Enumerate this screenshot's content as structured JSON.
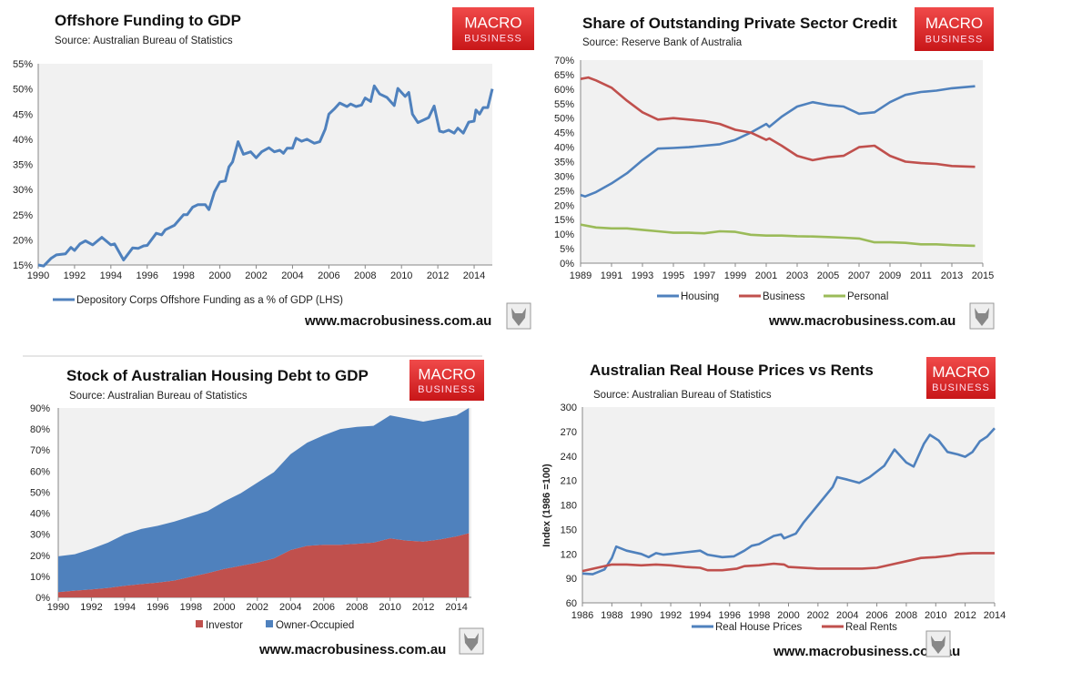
{
  "site": "www.macrobusiness.com.au",
  "logo_text": [
    "MACRO",
    "BUSINESS"
  ],
  "colors": {
    "blue": "#4f81bd",
    "red": "#c0504d",
    "green": "#9bbb59",
    "plot_bg": "#f1f1f1",
    "logo_red": "#e0272a"
  },
  "chart_data": [
    {
      "type": "line",
      "title": "Offshore Funding to GDP",
      "source": "Source:  Australian Bureau of Statistics",
      "xlim": [
        1990,
        2015
      ],
      "ylim": [
        15,
        55
      ],
      "xticks": [
        "1990",
        "1992",
        "1994",
        "1996",
        "1998",
        "2000",
        "2002",
        "2004",
        "2006",
        "2008",
        "2010",
        "2012",
        "2014"
      ],
      "yticks": [
        "15%",
        "20%",
        "25%",
        "30%",
        "35%",
        "40%",
        "45%",
        "50%",
        "55%"
      ],
      "series": [
        {
          "name": "Depository Corps Offshore Funding as a % of GDP (LHS)",
          "color": "#4f81bd",
          "x": [
            1990,
            1990.3,
            1990.7,
            1991,
            1991.5,
            1991.8,
            1992,
            1992.3,
            1992.6,
            1993,
            1993.5,
            1994,
            1994.2,
            1994.7,
            1995.2,
            1995.5,
            1995.8,
            1996,
            1996.5,
            1996.8,
            1997,
            1997.5,
            1998,
            1998.2,
            1998.5,
            1998.8,
            1999.2,
            1999.4,
            1999.7,
            2000,
            2000.3,
            2000.5,
            2000.7,
            2001,
            2001.3,
            2001.7,
            2002,
            2002.3,
            2002.7,
            2003,
            2003.3,
            2003.5,
            2003.7,
            2004,
            2004.2,
            2004.5,
            2004.8,
            2005.2,
            2005.5,
            2005.8,
            2006,
            2006.3,
            2006.6,
            2007,
            2007.2,
            2007.5,
            2007.8,
            2008,
            2008.3,
            2008.5,
            2008.8,
            2009.2,
            2009.6,
            2009.8,
            2010.2,
            2010.4,
            2010.6,
            2010.9,
            2011.2,
            2011.5,
            2011.8,
            2012.1,
            2012.3,
            2012.6,
            2012.9,
            2013.1,
            2013.4,
            2013.7,
            2014,
            2014.1,
            2014.3,
            2014.5,
            2014.75,
            2015
          ],
          "y": [
            15,
            14.8,
            16.3,
            17,
            17.2,
            18.5,
            17.9,
            19.2,
            19.8,
            19,
            20.5,
            19,
            19.2,
            16,
            18.4,
            18.3,
            18.8,
            18.9,
            21.3,
            21,
            22,
            22.9,
            25,
            25,
            26.5,
            27,
            27,
            26,
            29.5,
            31.5,
            31.7,
            34.5,
            35.5,
            39.5,
            37,
            37.5,
            36.3,
            37.5,
            38.3,
            37.5,
            37.8,
            37.2,
            38.2,
            38.2,
            40.2,
            39.6,
            40,
            39.2,
            39.5,
            42,
            45,
            46,
            47.2,
            46.5,
            47,
            46.5,
            46.8,
            48.2,
            47.5,
            50.6,
            49,
            48.3,
            46.7,
            50.1,
            48.5,
            49.3,
            45,
            43.3,
            43.8,
            44.3,
            46.6,
            41.6,
            41.4,
            41.8,
            41.2,
            42.2,
            41.2,
            43.4,
            43.6,
            45.8,
            45,
            46.3,
            46.3,
            50
          ]
        }
      ],
      "legend": "bottom-left"
    },
    {
      "type": "line",
      "title": "Share of Outstanding Private Sector Credit",
      "source": "Source: Reserve Bank of Australia",
      "xlim": [
        1989,
        2015
      ],
      "ylim": [
        0,
        70
      ],
      "xticks": [
        "1989",
        "1991",
        "1993",
        "1995",
        "1997",
        "1999",
        "2001",
        "2003",
        "2005",
        "2007",
        "2009",
        "2011",
        "2013",
        "2015"
      ],
      "yticks": [
        "0%",
        "5%",
        "10%",
        "15%",
        "20%",
        "25%",
        "30%",
        "35%",
        "40%",
        "45%",
        "50%",
        "55%",
        "60%",
        "65%",
        "70%"
      ],
      "series": [
        {
          "name": "Housing",
          "color": "#4f81bd",
          "x": [
            1989,
            1989.3,
            1990,
            1991,
            1992,
            1993,
            1994,
            1995,
            1996,
            1997,
            1998,
            1999,
            2000,
            2001,
            2001.2,
            2002,
            2003,
            2004,
            2005,
            2006,
            2007,
            2008,
            2009,
            2010,
            2011,
            2012,
            2013,
            2014.5
          ],
          "y": [
            23.5,
            23,
            24.5,
            27.5,
            31,
            35.5,
            39.5,
            39.7,
            40,
            40.5,
            41,
            42.5,
            45,
            48,
            47,
            50.5,
            54,
            55.5,
            54.5,
            54,
            51.5,
            52,
            55.5,
            58,
            59,
            59.5,
            60.3,
            61
          ]
        },
        {
          "name": "Business",
          "color": "#c0504d",
          "x": [
            1989,
            1989.5,
            1990,
            1991,
            1992,
            1993,
            1994,
            1995,
            1996,
            1997,
            1998,
            1999,
            2000,
            2001,
            2001.2,
            2002,
            2003,
            2004,
            2005,
            2006,
            2007,
            2008,
            2009,
            2010,
            2011,
            2012,
            2013,
            2014.5
          ],
          "y": [
            63.5,
            64,
            63,
            60.5,
            56,
            52,
            49.5,
            50,
            49.5,
            49,
            48,
            46,
            45,
            42.5,
            43,
            40.5,
            37,
            35.5,
            36.5,
            37,
            40,
            40.5,
            37,
            35,
            34.5,
            34.2,
            33.5,
            33.2
          ]
        },
        {
          "name": "Personal",
          "color": "#9bbb59",
          "x": [
            1989,
            1990,
            1991,
            1992,
            1993,
            1994,
            1995,
            1996,
            1997,
            1998,
            1999,
            2000,
            2001,
            2002,
            2003,
            2004,
            2005,
            2006,
            2007,
            2008,
            2009,
            2010,
            2011,
            2012,
            2013,
            2014.5
          ],
          "y": [
            13.3,
            12.3,
            12,
            12,
            11.5,
            11,
            10.5,
            10.5,
            10.3,
            11,
            10.8,
            9.8,
            9.5,
            9.5,
            9.3,
            9.2,
            9,
            8.8,
            8.5,
            7.2,
            7.2,
            7,
            6.5,
            6.5,
            6.2,
            6
          ]
        }
      ],
      "legend": "bottom"
    },
    {
      "type": "area",
      "stacked": true,
      "title": "Stock of Australian Housing Debt to GDP",
      "source": "Source: Australian Bureau of Statistics",
      "xlim": [
        1990,
        2014.9
      ],
      "ylim": [
        0,
        90
      ],
      "xticks": [
        "1990",
        "1992",
        "1994",
        "1996",
        "1998",
        "2000",
        "2002",
        "2004",
        "2006",
        "2008",
        "2010",
        "2012",
        "2014"
      ],
      "yticks": [
        "0%",
        "10%",
        "20%",
        "30%",
        "40%",
        "50%",
        "60%",
        "70%",
        "80%",
        "90%"
      ],
      "x": [
        1990,
        1991,
        1992,
        1993,
        1994,
        1995,
        1996,
        1997,
        1998,
        1999,
        2000,
        2001,
        2002,
        2003,
        2004,
        2005,
        2006,
        2007,
        2008,
        2009,
        2010,
        2011,
        2012,
        2013,
        2014,
        2014.75
      ],
      "series": [
        {
          "name": "Investor",
          "color": "#c0504d",
          "values": [
            2.5,
            3.2,
            3.8,
            4.5,
            5.5,
            6.3,
            7,
            8,
            9.8,
            11.5,
            13.5,
            15,
            16.5,
            18.5,
            22.5,
            24.5,
            25,
            25,
            25.5,
            26,
            28,
            27,
            26.5,
            27.5,
            29,
            30.5
          ]
        },
        {
          "name": "Owner-Occupied",
          "color": "#4f81bd",
          "values": [
            17,
            17.3,
            19.2,
            21.5,
            24.5,
            26.2,
            27,
            28,
            28.7,
            29.5,
            32,
            34.5,
            38,
            41,
            45.5,
            49,
            52,
            55,
            55.5,
            55.5,
            58.5,
            58,
            57,
            57.5,
            57.5,
            59.5
          ]
        }
      ],
      "legend": "bottom"
    },
    {
      "type": "line",
      "title": "Australian Real House Prices vs Rents",
      "source": "Source: Australian Bureau of Statistics",
      "ylabel": "Index (1986 =100)",
      "xlim": [
        1986,
        2014
      ],
      "ylim": [
        60,
        300
      ],
      "xticks": [
        "1986",
        "1988",
        "1990",
        "1992",
        "1994",
        "1996",
        "1998",
        "2000",
        "2002",
        "2004",
        "2006",
        "2008",
        "2010",
        "2012",
        "2014"
      ],
      "yticks": [
        "60",
        "90",
        "120",
        "150",
        "180",
        "210",
        "240",
        "270",
        "300"
      ],
      "series": [
        {
          "name": "Real House Prices",
          "color": "#4f81bd",
          "x": [
            1986,
            1986.7,
            1987.5,
            1988,
            1988.3,
            1989,
            1990,
            1990.5,
            1991,
            1991.5,
            1992,
            1993,
            1994,
            1994.5,
            1995.5,
            1996.3,
            1997,
            1997.5,
            1998,
            1999,
            1999.5,
            1999.7,
            2000.5,
            2001,
            2002,
            2003,
            2003.3,
            2004,
            2004.8,
            2005.5,
            2006.5,
            2007.2,
            2008,
            2008.5,
            2009.2,
            2009.6,
            2010.2,
            2010.8,
            2011.5,
            2012,
            2012.5,
            2013,
            2013.5,
            2014
          ],
          "y": [
            96,
            95,
            101,
            115,
            129,
            124,
            120,
            116,
            121,
            119,
            120,
            122,
            124,
            119,
            116,
            117,
            124,
            130,
            132,
            142,
            144,
            139,
            145,
            158,
            180,
            202,
            214,
            211,
            207,
            214,
            228,
            248,
            232,
            227,
            255,
            266,
            259,
            245,
            242,
            239,
            245,
            258,
            264,
            274
          ]
        },
        {
          "name": "Real Rents",
          "color": "#c0504d",
          "x": [
            1986,
            1987,
            1988,
            1989,
            1990,
            1991,
            1992,
            1993,
            1994,
            1994.5,
            1995.5,
            1996.5,
            1997,
            1998,
            1999,
            1999.7,
            2000,
            2002,
            2004,
            2005,
            2006,
            2007,
            2008,
            2009,
            2010,
            2011,
            2011.5,
            2012.5,
            2014
          ],
          "y": [
            99,
            103,
            107,
            107,
            106,
            107,
            106,
            104,
            103,
            100,
            100,
            102,
            105,
            106,
            108,
            107,
            104,
            102,
            102,
            102,
            103,
            107,
            111,
            115,
            116,
            118,
            120,
            121,
            121
          ]
        }
      ],
      "legend": "bottom"
    }
  ]
}
